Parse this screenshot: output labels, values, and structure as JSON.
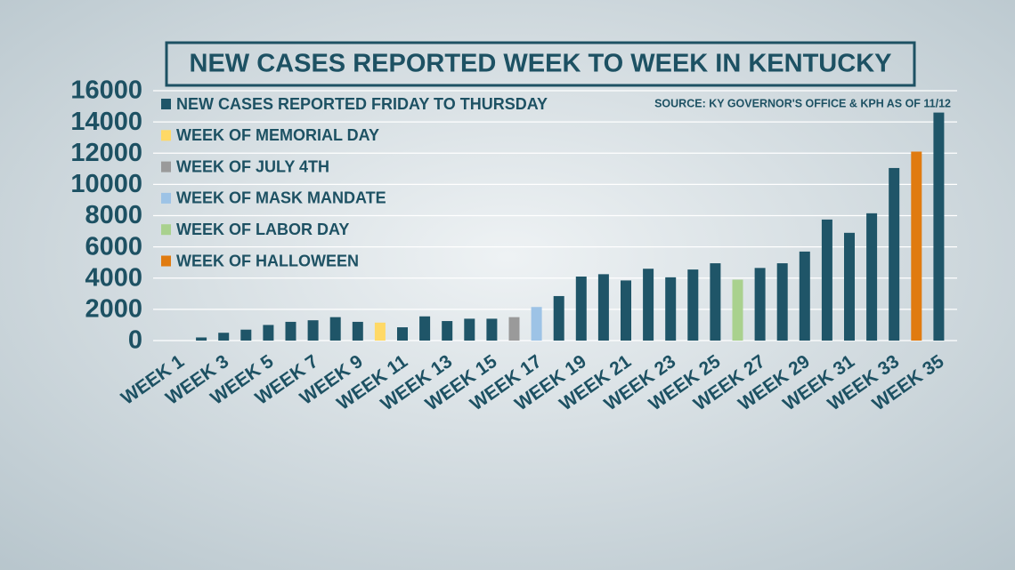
{
  "chart_data": {
    "type": "bar",
    "title": "NEW CASES REPORTED WEEK TO WEEK IN KENTUCKY",
    "source": "SOURCE: KY GOVERNOR'S OFFICE & KPH AS OF 11/12",
    "legend": [
      {
        "name": "NEW CASES REPORTED FRIDAY TO THURSDAY",
        "color": "#1f5568"
      },
      {
        "name": "WEEK OF MEMORIAL DAY",
        "color": "#ffd966"
      },
      {
        "name": "WEEK OF JULY 4TH",
        "color": "#9a9a9a"
      },
      {
        "name": "WEEK OF MASK MANDATE",
        "color": "#9dc3e6"
      },
      {
        "name": "WEEK OF LABOR DAY",
        "color": "#a9d18e"
      },
      {
        "name": "WEEK OF HALLOWEEN",
        "color": "#e07b10"
      }
    ],
    "categories": [
      "WEEK 1",
      null,
      "WEEK 3",
      null,
      "WEEK 5",
      null,
      "WEEK 7",
      null,
      "WEEK 9",
      null,
      "WEEK 11",
      null,
      "WEEK 13",
      null,
      "WEEK 15",
      null,
      "WEEK 17",
      null,
      "WEEK 19",
      null,
      "WEEK 21",
      null,
      "WEEK 23",
      null,
      "WEEK 25",
      null,
      "WEEK 27",
      null,
      "WEEK 29",
      null,
      "WEEK 31",
      null,
      "WEEK 33",
      null,
      "WEEK 35"
    ],
    "values": [
      0,
      200,
      500,
      700,
      1000,
      1200,
      1300,
      1500,
      1200,
      1150,
      850,
      1550,
      1250,
      1400,
      1400,
      1500,
      2150,
      2850,
      4100,
      4250,
      3850,
      4600,
      4050,
      4550,
      4950,
      3900,
      4650,
      4950,
      5700,
      7750,
      6900,
      8150,
      11050,
      12100,
      14600
    ],
    "colors": [
      "#1f5568",
      "#1f5568",
      "#1f5568",
      "#1f5568",
      "#1f5568",
      "#1f5568",
      "#1f5568",
      "#1f5568",
      "#1f5568",
      "#ffd966",
      "#1f5568",
      "#1f5568",
      "#1f5568",
      "#1f5568",
      "#1f5568",
      "#9a9a9a",
      "#9dc3e6",
      "#1f5568",
      "#1f5568",
      "#1f5568",
      "#1f5568",
      "#1f5568",
      "#1f5568",
      "#1f5568",
      "#1f5568",
      "#a9d18e",
      "#1f5568",
      "#1f5568",
      "#1f5568",
      "#1f5568",
      "#1f5568",
      "#1f5568",
      "#1f5568",
      "#e07b10",
      "#1f5568"
    ],
    "ylim": [
      0,
      16000
    ],
    "yticks": [
      0,
      2000,
      4000,
      6000,
      8000,
      10000,
      12000,
      14000,
      16000
    ],
    "grid": true
  }
}
